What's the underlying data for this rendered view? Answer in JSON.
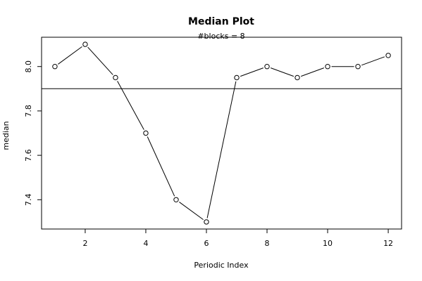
{
  "chart_data": {
    "type": "line",
    "title": "Median Plot",
    "subtitle": "#blocks =  8",
    "xlabel": "Periodic Index",
    "ylabel": "median",
    "x": [
      1,
      2,
      3,
      4,
      5,
      6,
      7,
      8,
      9,
      10,
      11,
      12
    ],
    "series": [
      {
        "values": [
          8.0,
          8.1,
          7.95,
          7.7,
          7.4,
          7.3,
          7.95,
          8.0,
          7.95,
          8.0,
          8.0,
          8.05
        ]
      }
    ],
    "hline": 7.9,
    "xlim": [
      0.56,
      12.44
    ],
    "ylim": [
      7.268,
      8.132
    ],
    "xticks": [
      2,
      4,
      6,
      8,
      10,
      12
    ],
    "yticks": [
      7.4,
      7.6,
      7.8,
      8.0
    ],
    "xtick_labels": [
      "2",
      "4",
      "6",
      "8",
      "10",
      "12"
    ],
    "ytick_labels": [
      "7.4",
      "7.6",
      "7.8",
      "8.0"
    ],
    "marker": "open-circle",
    "grid": false,
    "legend": false,
    "colors": {
      "line": "#000000",
      "background": "#ffffff"
    }
  }
}
